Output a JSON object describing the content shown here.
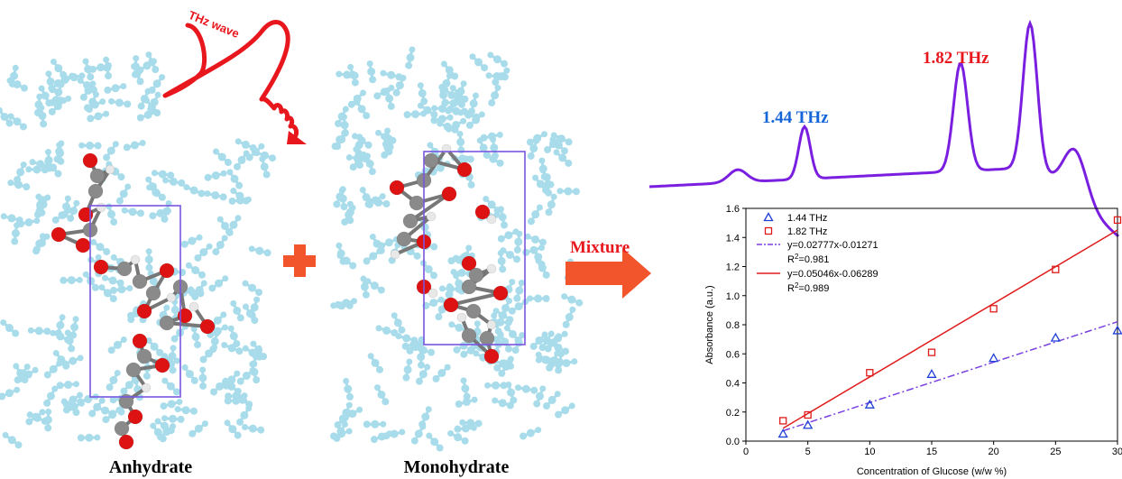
{
  "labels": {
    "anhydrate": "Anhydrate",
    "monohydrate": "Monohydrate",
    "mixture": "Mixture",
    "thz_wave": "THz wave",
    "peak_a": "1.44 THz",
    "peak_b": "1.82 THz"
  },
  "colors": {
    "peak_a": "#1565d8",
    "peak_b": "#e8171e",
    "spectrum": "#7a1fe0",
    "arrow": "#f2542c",
    "oxygen": "#dd1212",
    "carbon": "#8a8a8a",
    "hydrogen": "#e8e8e8",
    "packing": "#a9dcea",
    "cell": "#7a55e0"
  },
  "chart_data": {
    "type": "scatter",
    "xlabel": "Concentration of  Glucose (w/w %)",
    "ylabel": "Absorbance (a.u.)",
    "xlim": [
      0,
      30
    ],
    "ylim": [
      0.0,
      1.6
    ],
    "xticks": [
      "0",
      "5",
      "10",
      "15",
      "20",
      "25",
      "30"
    ],
    "yticks": [
      "0.0",
      "0.2",
      "0.4",
      "0.6",
      "0.8",
      "1.0",
      "1.2",
      "1.4",
      "1.6"
    ],
    "legend_position": "top-left",
    "series": [
      {
        "name": "1.44 THz",
        "marker": "triangle",
        "color": "#1f3fd6",
        "x": [
          3,
          5,
          10,
          15,
          20,
          25,
          30
        ],
        "y": [
          0.05,
          0.11,
          0.25,
          0.46,
          0.57,
          0.71,
          0.76
        ],
        "fit_label": "y=0.02777x-0.01271",
        "r2_prefix": "R",
        "r2_sup": "2",
        "r2_value": "=0.981",
        "fit": {
          "slope": 0.02777,
          "intercept": -0.01271,
          "style": "dash-dot",
          "color": "#7a3fe0"
        }
      },
      {
        "name": "1.82 THz",
        "marker": "square",
        "color": "#e01a1a",
        "x": [
          3,
          5,
          10,
          15,
          20,
          25,
          30
        ],
        "y": [
          0.14,
          0.18,
          0.47,
          0.61,
          0.91,
          1.18,
          1.52
        ],
        "fit_label": "y=0.05046x-0.06289",
        "r2_prefix": "R",
        "r2_sup": "2",
        "r2_value": "=0.989",
        "fit": {
          "slope": 0.05046,
          "intercept": -0.06289,
          "style": "solid",
          "color": "#e01a1a"
        }
      }
    ]
  }
}
